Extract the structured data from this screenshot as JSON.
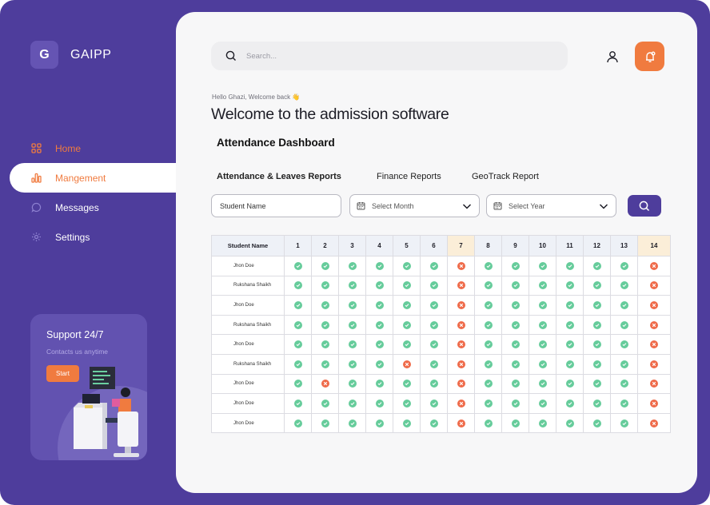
{
  "brand": {
    "logo_letter": "G",
    "name": "GAIPP"
  },
  "nav": {
    "items": [
      {
        "label": "Home",
        "icon": "grid-icon"
      },
      {
        "label": "Mangement",
        "icon": "bar-chart-icon"
      },
      {
        "label": "Messages",
        "icon": "chat-bubble-icon"
      },
      {
        "label": "Settings",
        "icon": "gear-icon"
      }
    ]
  },
  "support": {
    "title": "Support 24/7",
    "subtitle": "Contacts us anytime",
    "button": "Start"
  },
  "header": {
    "search_placeholder": "Search..."
  },
  "greeting": "Hello Ghazi, Welcome back 👋",
  "welcome": "Welcome to the admission software",
  "dashboard_title": "Attendance Dashboard",
  "tabs": [
    "Attendance & Leaves Reports",
    "Finance Reports",
    "GeoTrack Report"
  ],
  "filters": {
    "student_name": "Student Name",
    "month_placeholder": "Select Month",
    "year_placeholder": "Select Year"
  },
  "table": {
    "name_header": "Student Name",
    "days": [
      "1",
      "2",
      "3",
      "4",
      "5",
      "6",
      "7",
      "8",
      "9",
      "10",
      "11",
      "12",
      "13",
      "14"
    ],
    "highlight_days": [
      "7",
      "14"
    ],
    "rows": [
      {
        "name": "Jhon Doe",
        "marks": "PPPPPPAPPPPPPA"
      },
      {
        "name": "Rukshana Shaikh",
        "marks": "PPPPPPAPPPPPPA"
      },
      {
        "name": "Jhon Doe",
        "marks": "PPPPPPAPPPPPPA"
      },
      {
        "name": "Rukshana Shaikh",
        "marks": "PPPPPPAPPPPPPA"
      },
      {
        "name": "Jhon Doe",
        "marks": "PPPPPPAPPPPPPA"
      },
      {
        "name": "Rukshana Shaikh",
        "marks": "PPPPAPAPPPPPPA"
      },
      {
        "name": "Jhon Doe",
        "marks": "PAPPPPAPPPPPPA"
      },
      {
        "name": "Jhon Doe",
        "marks": "PPPPPPAPPPPPPA"
      },
      {
        "name": "Jhon Doe",
        "marks": "PPPPPPAPPPPPPA"
      }
    ]
  },
  "colors": {
    "brand_purple": "#4e3d9c",
    "accent_orange": "#f07b3f",
    "present_green": "#66cc9b",
    "absent_red": "#ef6b4a"
  }
}
